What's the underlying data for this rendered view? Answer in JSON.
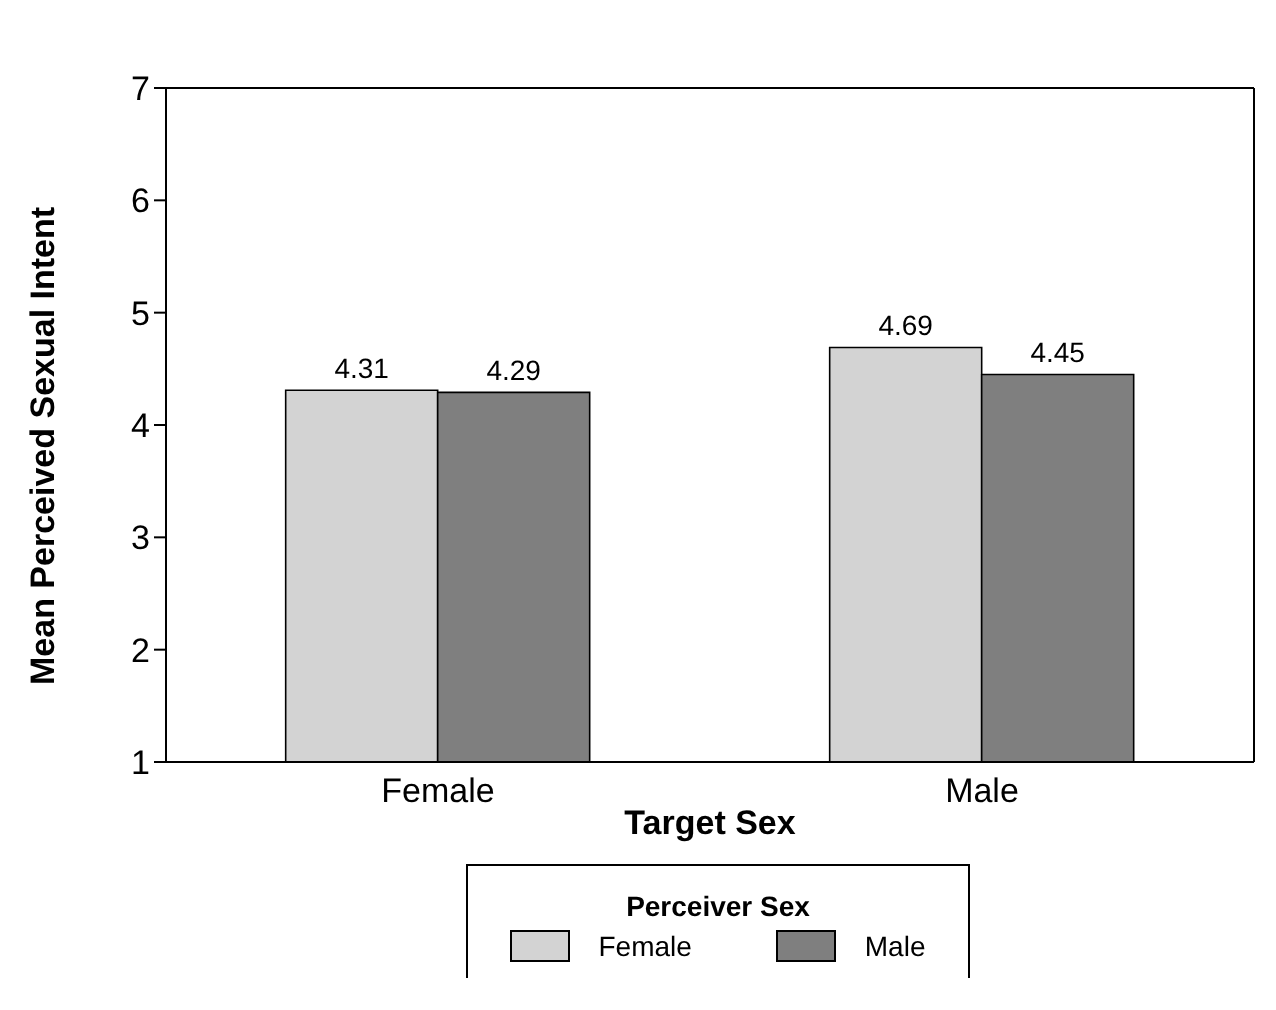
{
  "chart_data": {
    "type": "bar",
    "xlabel": "Target Sex",
    "ylabel": "Mean Perceived Sexual Intent",
    "legend_title": "Perceiver Sex",
    "categories": [
      "Female",
      "Male"
    ],
    "series": [
      {
        "name": "Female",
        "color": "#d3d3d3",
        "values": [
          4.31,
          4.69
        ]
      },
      {
        "name": "Male",
        "color": "#7f7f7f",
        "values": [
          4.29,
          4.45
        ]
      }
    ],
    "ylim": [
      1,
      7
    ],
    "yticks": [
      1,
      2,
      3,
      4,
      5,
      6,
      7
    ],
    "data_labels": true,
    "legend": "bottom",
    "grid": false
  }
}
